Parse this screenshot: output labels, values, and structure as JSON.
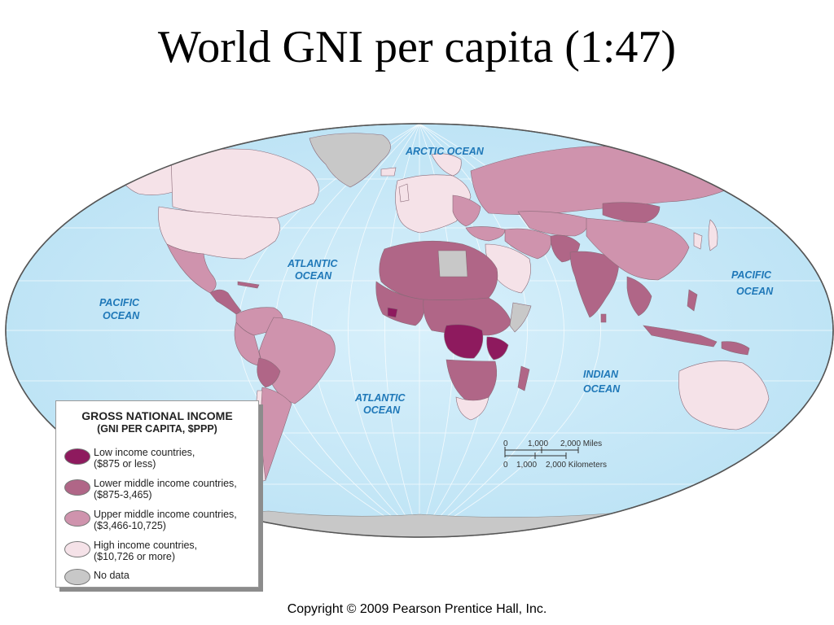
{
  "title": "World GNI per capita (1:47)",
  "colors": {
    "ocean": "#cbeaf8",
    "ocean_deep": "#bfe4f6",
    "low_income": "#8e1a5e",
    "lower_middle": "#b06687",
    "upper_middle": "#cf93ad",
    "high_income": "#f5e2e8",
    "no_data": "#c8c8c8",
    "ocean_label": "#1f78b8"
  },
  "oceans": {
    "arctic": "ARCTIC OCEAN",
    "atlantic_north_line1": "ATLANTIC",
    "atlantic_north_line2": "OCEAN",
    "pacific_east_line1": "PACIFIC",
    "pacific_east_line2": "OCEAN",
    "pacific_west_line1": "PACIFIC",
    "pacific_west_line2": "OCEAN",
    "indian_line1": "INDIAN",
    "indian_line2": "OCEAN",
    "atlantic_south_line1": "ATLANTIC",
    "atlantic_south_line2": "OCEAN"
  },
  "legend": {
    "title": "GROSS NATIONAL INCOME",
    "subtitle": "(GNI PER CAPITA, $PPP)",
    "items": [
      {
        "line1": "Low income countries,",
        "line2": "($875 or less)"
      },
      {
        "line1": "Lower middle income countries,",
        "line2": "($875-3,465)"
      },
      {
        "line1": "Upper middle income countries,",
        "line2": "($3,466-10,725)"
      },
      {
        "line1": "High income countries,",
        "line2": "($10,726 or more)"
      },
      {
        "line1": "No data",
        "line2": ""
      }
    ]
  },
  "scale": {
    "miles_zero": "0",
    "miles_mid": "1,000",
    "miles_end": "2,000 Miles",
    "km_zero": "0",
    "km_mid": "1,000",
    "km_end": "2,000 Kilometers"
  },
  "copyright": "Copyright © 2009 Pearson Prentice Hall, Inc."
}
